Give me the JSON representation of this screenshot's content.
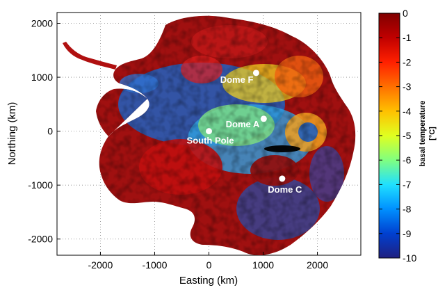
{
  "map": {
    "x_axis": {
      "label": "Easting (km)",
      "ticks": [
        "-2000",
        "-1000",
        "0",
        "1000",
        "2000"
      ],
      "tick_values": [
        -2000,
        -1000,
        0,
        1000,
        2000
      ],
      "range": [
        -2800,
        2800
      ]
    },
    "y_axis": {
      "label": "Northing (km)",
      "ticks": [
        "2000",
        "1000",
        "0",
        "-1000",
        "-2000"
      ],
      "tick_values": [
        2000,
        1000,
        0,
        -1000,
        -2000
      ],
      "range": [
        -2300,
        2200
      ]
    },
    "grid": "dotted",
    "sites": [
      {
        "name": "Dome F",
        "easting": 870,
        "northing": 1080
      },
      {
        "name": "Dome A",
        "easting": 1010,
        "northing": 230
      },
      {
        "name": "South Pole",
        "easting": 0,
        "northing": 0
      },
      {
        "name": "Dome C",
        "easting": 1350,
        "northing": -880
      }
    ]
  },
  "colorbar": {
    "label_line1": "basal temperature",
    "label_line2": "[°C]",
    "ticks": [
      "0",
      "-1",
      "-2",
      "-3",
      "-4",
      "-5",
      "-6",
      "-7",
      "-8",
      "-9",
      "-10"
    ],
    "range": [
      -10,
      0
    ],
    "colors": [
      "#800000",
      "#c00000",
      "#ff2000",
      "#ff7000",
      "#ffc000",
      "#e0ff20",
      "#80ff80",
      "#20e0ff",
      "#0090ff",
      "#0040d0",
      "#202080"
    ]
  }
}
